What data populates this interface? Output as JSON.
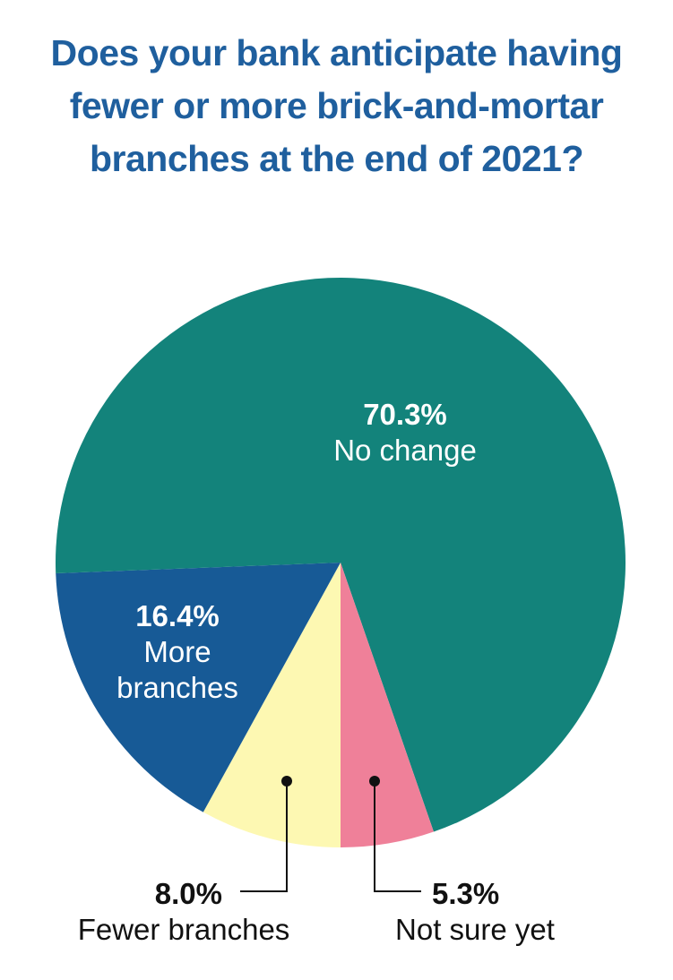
{
  "chart_data": {
    "type": "pie",
    "title": "Does your bank anticipate having fewer or more brick-and-mortar branches at the end of 2021?",
    "categories": [
      "Fewer branches",
      "More branches",
      "No change",
      "Not sure yet"
    ],
    "values": [
      8.0,
      16.4,
      70.3,
      5.3
    ],
    "value_labels": [
      "8.0%",
      "16.4%",
      "70.3%",
      "5.3%"
    ],
    "colors": [
      "#fdf8b2",
      "#175a96",
      "#13837b",
      "#ef8099"
    ]
  }
}
